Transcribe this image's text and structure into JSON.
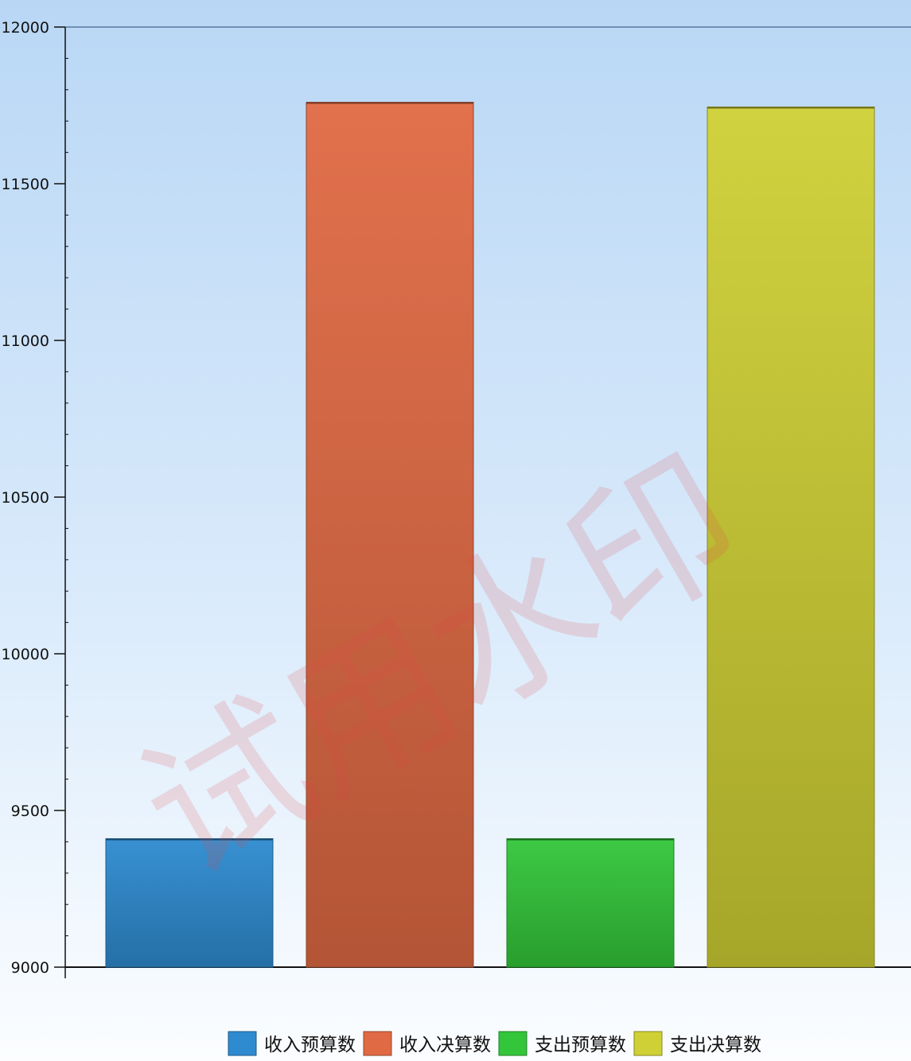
{
  "chart_data": {
    "type": "bar",
    "categories": [
      "收入预算数",
      "收入决算数",
      "支出预算数",
      "支出决算数"
    ],
    "values": [
      9410,
      11760,
      9410,
      11745
    ],
    "colors": [
      "#2e8bd0",
      "#e06a44",
      "#33c63a",
      "#cfd035"
    ],
    "ylim": [
      9000,
      12000
    ],
    "yticks": [
      9000,
      9500,
      10000,
      10500,
      11000,
      11500,
      12000
    ],
    "ytick_labels": [
      "9000",
      "9500",
      "10000",
      "10500",
      "11000",
      "11500",
      "12000"
    ],
    "title": "",
    "xlabel": "",
    "ylabel": "",
    "grid": false,
    "legend": {
      "position": "bottom",
      "entries": [
        "收入预算数",
        "收入决算数",
        "支出预算数",
        "支出决算数"
      ]
    }
  },
  "watermark": {
    "text": "试用水印"
  }
}
